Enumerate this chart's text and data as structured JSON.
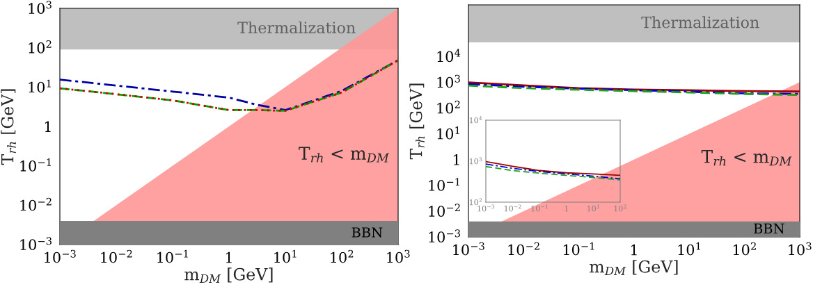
{
  "chart_data": [
    {
      "type": "line",
      "xlabel": "m$_{DM}$ [GeV]",
      "ylabel": "T$_{rh}$ [GeV]",
      "log": "xy",
      "grid": false,
      "xlim": [
        0.001,
        1000
      ],
      "ylim": [
        0.001,
        1000
      ],
      "xticks": [
        {
          "value": 0.001,
          "label": "10$^{−3}$"
        },
        {
          "value": 0.01,
          "label": "10$^{−2}$"
        },
        {
          "value": 0.1,
          "label": "10$^{−1}$"
        },
        1,
        {
          "value": 10,
          "label": "10$^{1}$"
        },
        {
          "value": 100,
          "label": "10$^{2}$"
        },
        {
          "value": 1000,
          "label": "10$^{3}$"
        }
      ],
      "yticks": [
        {
          "value": 0.001,
          "label": "10$^{−3}$"
        },
        {
          "value": 0.01,
          "label": "10$^{−2}$"
        },
        {
          "value": 0.1,
          "label": "10$^{−1}$"
        },
        1,
        {
          "value": 10,
          "label": "10$^{1}$"
        },
        {
          "value": 100,
          "label": "10$^{2}$"
        },
        {
          "value": 1000,
          "label": "10$^{3}$"
        }
      ],
      "bands": [
        {
          "axis": "y",
          "from": 90,
          "to": 1000,
          "label": "Thermalization",
          "color": "#bfbfbf"
        },
        {
          "axis": "y",
          "from": 0.001,
          "to": 0.004,
          "label": "BBN",
          "color": "#808080"
        }
      ],
      "annotations": [
        "T$_{rh}$ < m$_{DM}$"
      ],
      "series": [
        {
          "type": "area",
          "color": "#ff9797",
          "x": [
            0.004,
            1000
          ],
          "values": [
            0.004,
            1000
          ]
        },
        {
          "color": "#0000a0",
          "line_style": "dashdot",
          "x": [
            0.001,
            0.01,
            0.1,
            1,
            3,
            10,
            100,
            1000
          ],
          "values": [
            15.5,
            10.9,
            7.7,
            5.4,
            3.6,
            2.6,
            8,
            48
          ]
        },
        {
          "color": "#00a000",
          "line_style": "dashed",
          "x": [
            0.001,
            0.01,
            0.1,
            1,
            3,
            10,
            100,
            1000
          ],
          "values": [
            9.3,
            6.6,
            4.6,
            2.6,
            2.6,
            2.5,
            7.3,
            48
          ]
        },
        {
          "color": "#d00000",
          "line_style": "dotted",
          "x": [
            0.001,
            0.01,
            0.1,
            1,
            3,
            10,
            100,
            1000
          ],
          "values": [
            9.3,
            6.6,
            4.6,
            2.6,
            2.6,
            2.5,
            7.3,
            48
          ]
        }
      ]
    },
    {
      "type": "line",
      "xlabel": "m$_{DM}$ [GeV]",
      "ylabel": "T$_{rh}$ [GeV]",
      "log": "xy",
      "grid": false,
      "xlim": [
        0.001,
        1000
      ],
      "ylim": [
        0.001,
        1000000
      ],
      "xticks": [
        {
          "value": 0.001,
          "label": "10$^{−3}$"
        },
        {
          "value": 0.01,
          "label": "10$^{−2}$"
        },
        {
          "value": 0.1,
          "label": "10$^{−1}$"
        },
        1,
        {
          "value": 10,
          "label": "10$^{1}$"
        },
        {
          "value": 100,
          "label": "10$^{2}$"
        },
        {
          "value": 1000,
          "label": "10$^{3}$"
        }
      ],
      "yticks": [
        {
          "value": 0.001,
          "label": "10$^{−3}$"
        },
        {
          "value": 0.01,
          "label": "10$^{−2}$"
        },
        {
          "value": 0.1,
          "label": "10$^{−1}$"
        },
        1,
        {
          "value": 10,
          "label": "10$^{1}$"
        },
        {
          "value": 100,
          "label": "10$^{2}$"
        },
        {
          "value": 1000,
          "label": "10$^{3}$"
        },
        {
          "value": 10000,
          "label": "10$^{4}$"
        }
      ],
      "bands": [
        {
          "axis": "y",
          "from": 35000,
          "to": 1000000,
          "label": "Thermalization",
          "color": "#bfbfbf"
        },
        {
          "axis": "y",
          "from": 0.001,
          "to": 0.004,
          "label": "BBN",
          "color": "#808080"
        }
      ],
      "annotations": [
        "T$_{rh}$ < m$_{DM}$"
      ],
      "series": [
        {
          "type": "area",
          "color": "#ff9797",
          "x": [
            0.004,
            1000
          ],
          "values": [
            0.004,
            1000
          ]
        },
        {
          "color": "#a00000",
          "line_style": "solid",
          "x": [
            0.001,
            0.01,
            0.1,
            1,
            10,
            100,
            1000
          ],
          "values": [
            980,
            750,
            590,
            520,
            490,
            450,
            440
          ]
        },
        {
          "color": "#0000d0",
          "line_style": "dashdot",
          "x": [
            0.001,
            0.01,
            0.1,
            1,
            10,
            100,
            1000
          ],
          "values": [
            850,
            670,
            560,
            490,
            430,
            370,
            350
          ]
        },
        {
          "color": "#20a020",
          "line_style": "dashed",
          "x": [
            0.001,
            0.01,
            0.1,
            1,
            10,
            100,
            1000
          ],
          "values": [
            740,
            590,
            510,
            450,
            400,
            350,
            320
          ]
        }
      ]
    },
    {
      "type": "line",
      "log": "xy",
      "grid": false,
      "xlim": [
        0.001,
        100
      ],
      "ylim": [
        100,
        10000
      ],
      "xticks": [
        {
          "value": 0.001,
          "label": "10$^{−3}$"
        },
        {
          "value": 0.01,
          "label": "10$^{−2}$"
        },
        {
          "value": 0.1,
          "label": "10$^{−1}$"
        },
        1,
        {
          "value": 10,
          "label": "10$^{1}$"
        },
        {
          "value": 100,
          "label": "10$^{2}$"
        }
      ],
      "yticks": [
        {
          "value": 100,
          "label": "10$^{2}$"
        },
        {
          "value": 1000,
          "label": "10$^{3}$"
        },
        {
          "value": 10000,
          "label": "10$^{4}$"
        }
      ],
      "series": [
        {
          "color": "#a00000",
          "line_style": "solid",
          "x": [
            0.001,
            0.01,
            0.1,
            1,
            10,
            100
          ],
          "values": [
            980,
            750,
            590,
            520,
            490,
            450
          ]
        },
        {
          "color": "#0000d0",
          "line_style": "dashdot",
          "x": [
            0.001,
            0.01,
            0.1,
            1,
            10,
            100
          ],
          "values": [
            850,
            670,
            560,
            490,
            430,
            370
          ]
        },
        {
          "color": "#20a020",
          "line_style": "dashed",
          "x": [
            0.001,
            0.01,
            0.1,
            1,
            10,
            100
          ],
          "values": [
            740,
            590,
            510,
            450,
            400,
            350
          ]
        }
      ]
    }
  ]
}
